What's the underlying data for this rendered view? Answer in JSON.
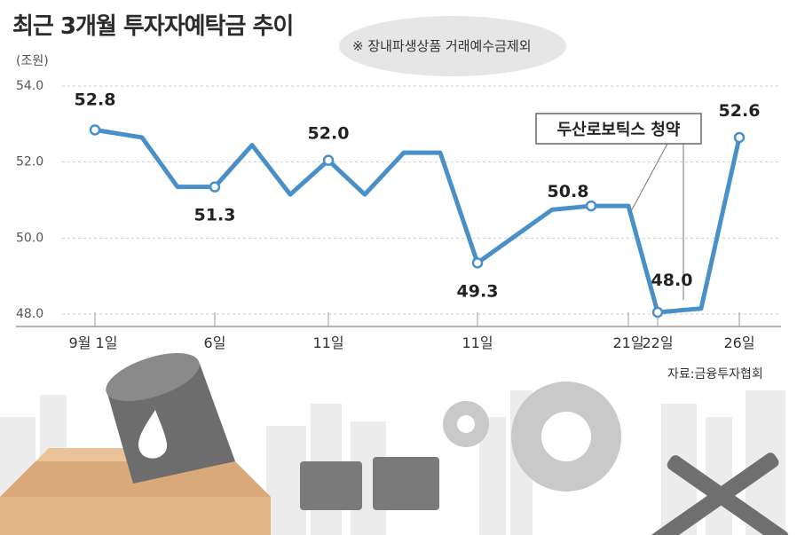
{
  "chart_data": {
    "type": "line",
    "title": "최근 3개월 투자자예탁금 추이",
    "note": "※ 장내파생상품 거래예수금제외",
    "ylabel": "(조원)",
    "ylim": [
      48.0,
      54.0
    ],
    "yticks": [
      "54.0",
      "52.0",
      "50.0",
      "48.0"
    ],
    "x_tick_labels": [
      "9월 1일",
      "6일",
      "11일",
      "11일",
      "21일",
      "22일",
      "26일"
    ],
    "values": [
      52.8,
      52.6,
      51.3,
      51.3,
      52.4,
      51.1,
      52.0,
      51.1,
      52.2,
      52.2,
      49.3,
      50.0,
      50.7,
      50.8,
      50.8,
      48.0,
      48.1,
      52.6
    ],
    "labeled_points": [
      {
        "index": 0,
        "label": "52.8"
      },
      {
        "index": 3,
        "label": "51.3"
      },
      {
        "index": 6,
        "label": "52.0"
      },
      {
        "index": 10,
        "label": "49.3"
      },
      {
        "index": 13,
        "label": "50.8"
      },
      {
        "index": 15,
        "label": "48.0"
      },
      {
        "index": 17,
        "label": "52.6"
      }
    ],
    "annotation": "두산로보틱스 청약",
    "source": "자료:금융투자협회",
    "line_color": "#4a90c8"
  }
}
